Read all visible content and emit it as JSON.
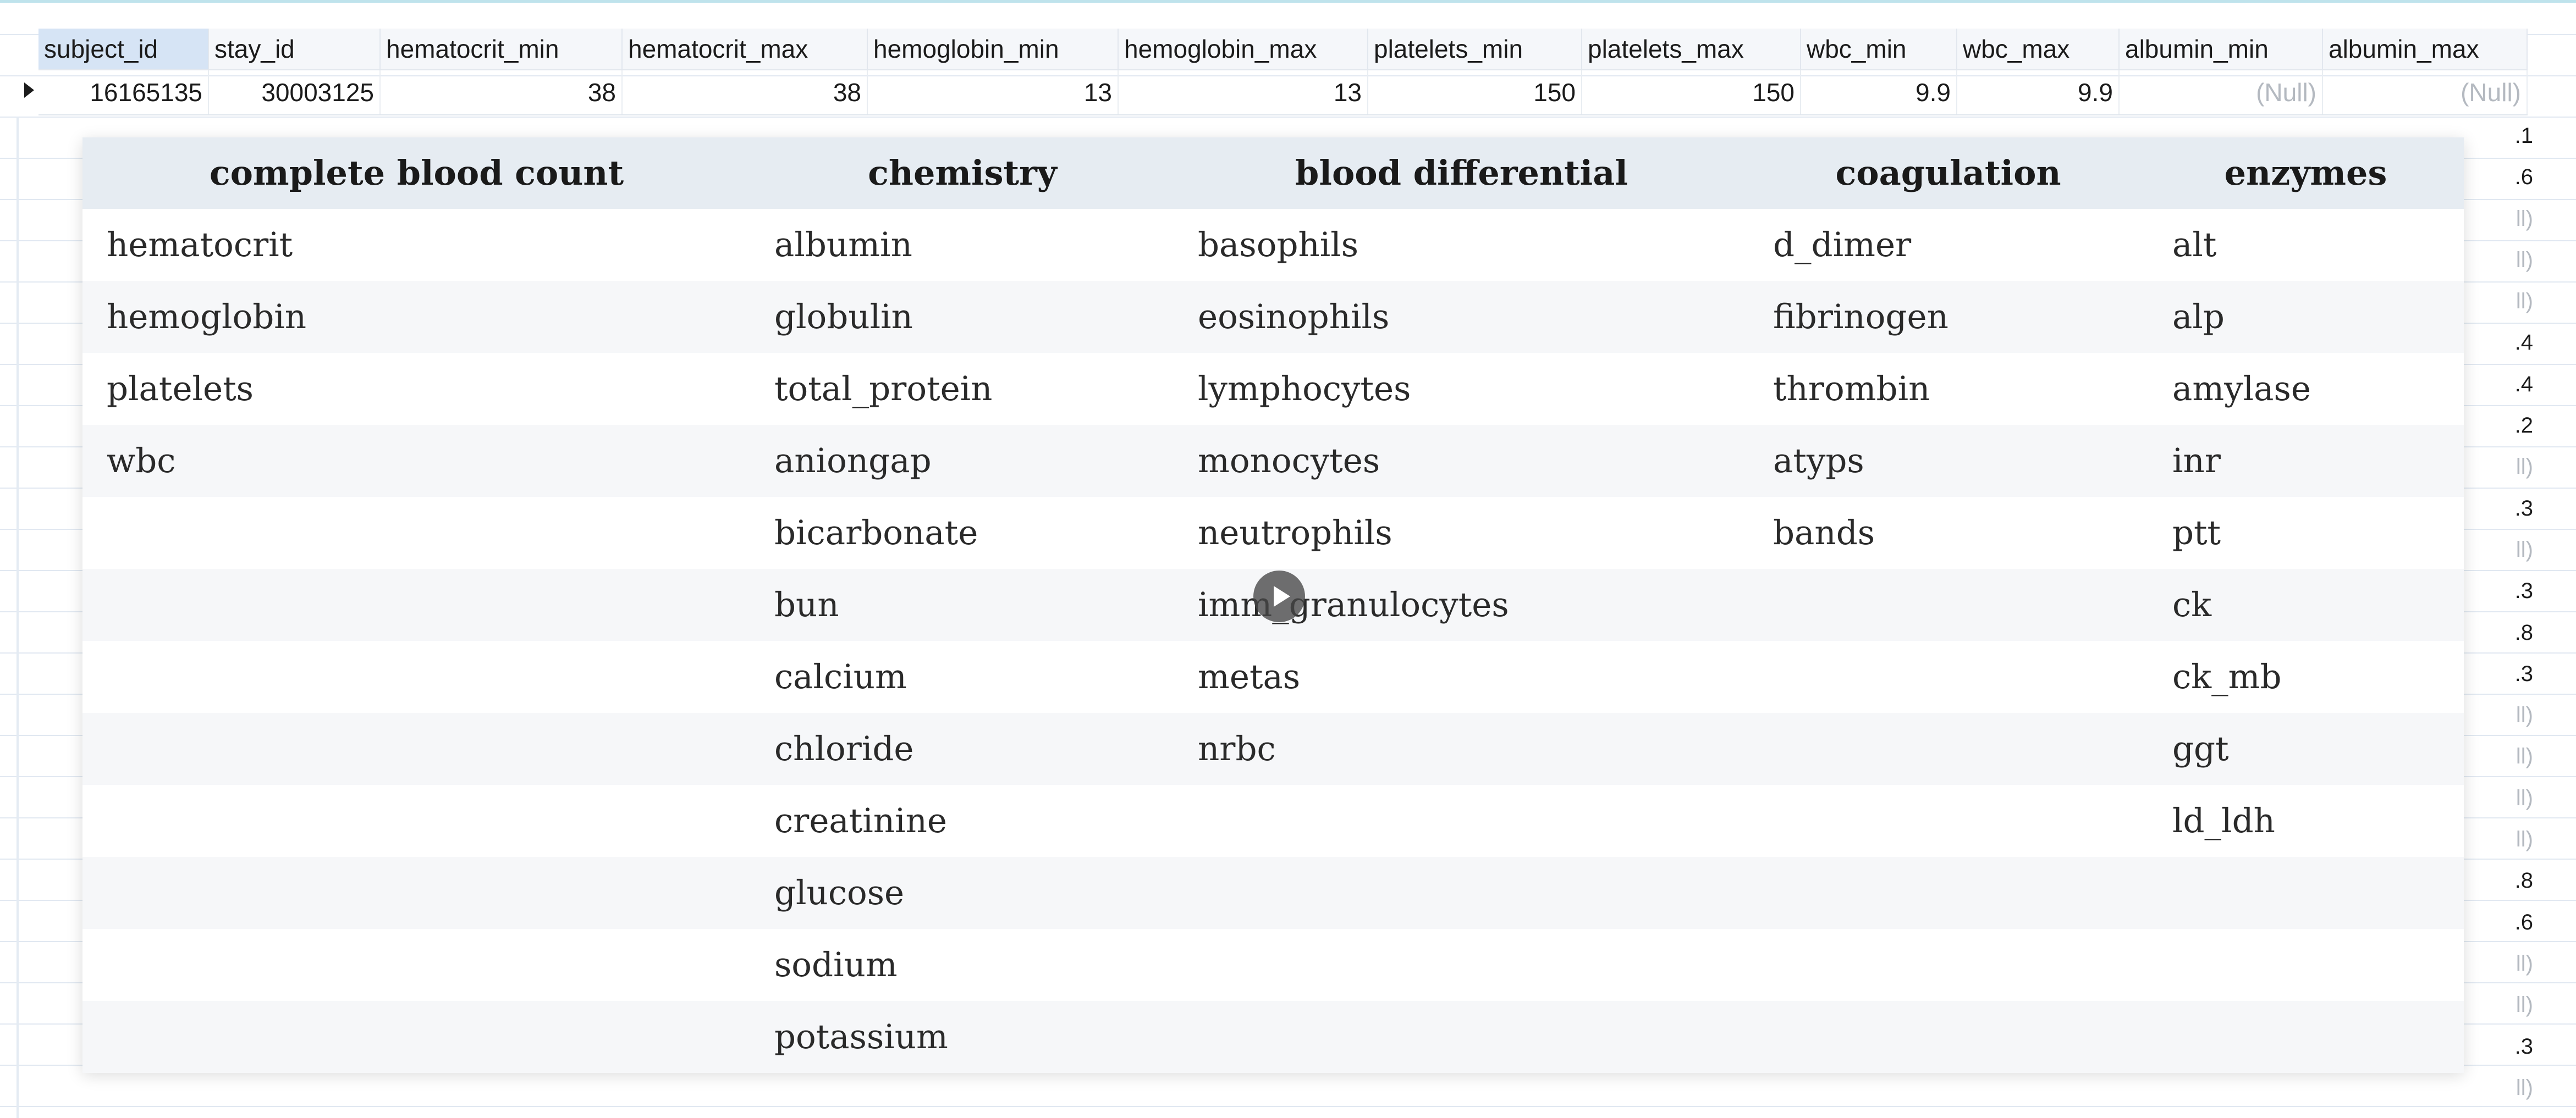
{
  "grid": {
    "columns": [
      "subject_id",
      "stay_id",
      "hematocrit_min",
      "hematocrit_max",
      "hemoglobin_min",
      "hemoglobin_max",
      "platelets_min",
      "platelets_max",
      "wbc_min",
      "wbc_max",
      "albumin_min",
      "albumin_max"
    ],
    "row": [
      "16165135",
      "30003125",
      "38",
      "38",
      "13",
      "13",
      "150",
      "150",
      "9.9",
      "9.9",
      "(Null)",
      "(Null)"
    ],
    "edge_values": [
      ".1",
      ".6",
      "ll)",
      "ll)",
      "ll)",
      ".4",
      ".4",
      ".2",
      "ll)",
      ".3",
      "ll)",
      ".3",
      ".8",
      ".3",
      "ll)",
      "ll)",
      "ll)",
      "ll)",
      ".8",
      ".6",
      "ll)",
      "ll)",
      ".3",
      "ll)"
    ]
  },
  "overlay": {
    "headers": [
      "complete blood count",
      "chemistry",
      "blood differential",
      "coagulation",
      "enzymes"
    ],
    "columns": [
      [
        "hematocrit",
        "hemoglobin",
        "platelets",
        "wbc"
      ],
      [
        "albumin",
        "globulin",
        "total_protein",
        "aniongap",
        "bicarbonate",
        "bun",
        "calcium",
        "chloride",
        "creatinine",
        "glucose",
        "sodium",
        "potassium"
      ],
      [
        "basophils",
        "eosinophils",
        "lymphocytes",
        "monocytes",
        "neutrophils",
        "imm_granulocytes",
        "metas",
        "nrbc"
      ],
      [
        "d_dimer",
        "fibrinogen",
        "thrombin",
        "atyps",
        "bands"
      ],
      [
        "alt",
        "alp",
        "amylase",
        "inr",
        "ptt",
        "ck",
        "ck_mb",
        "ggt",
        "ld_ldh"
      ]
    ]
  },
  "video": {
    "control": "play-icon"
  }
}
